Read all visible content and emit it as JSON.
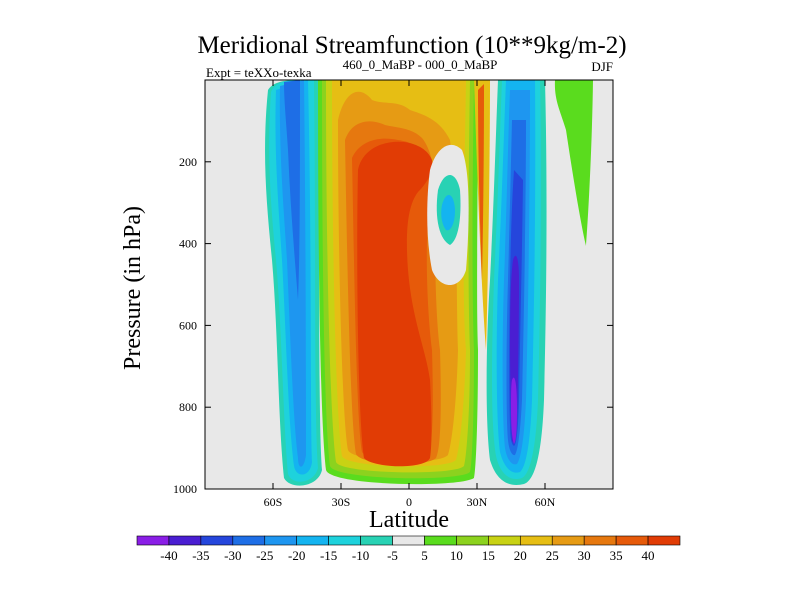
{
  "chart_data": {
    "type": "heatmap",
    "title": "Meridional Streamfunction (10**9kg/m-2)",
    "subtitle_left": "Expt = teXXo-texka",
    "subtitle_center": "460_0_MaBP - 000_0_MaBP",
    "subtitle_right": "DJF",
    "xlabel": "Latitude",
    "ylabel": "Pressure (in hPa)",
    "xlim": [
      -90,
      90
    ],
    "ylim": [
      0,
      1000
    ],
    "y_inverted": true,
    "x_ticks": [
      {
        "value": -60,
        "label": "60S"
      },
      {
        "value": -30,
        "label": "30S"
      },
      {
        "value": 0,
        "label": "0"
      },
      {
        "value": 30,
        "label": "30N"
      },
      {
        "value": 60,
        "label": "60N"
      }
    ],
    "y_ticks": [
      {
        "value": 200,
        "label": "200"
      },
      {
        "value": 400,
        "label": "400"
      },
      {
        "value": 600,
        "label": "600"
      },
      {
        "value": 800,
        "label": "800"
      },
      {
        "value": 1000,
        "label": "1000"
      }
    ],
    "levels": [
      -40,
      -35,
      -30,
      -25,
      -20,
      -15,
      -10,
      -5,
      5,
      10,
      15,
      20,
      25,
      30,
      35,
      40
    ],
    "colors": [
      "#8a1ee6",
      "#4a1ed2",
      "#2546dc",
      "#1e6ee6",
      "#1e96f0",
      "#14b4f0",
      "#1ed2dc",
      "#28d2b4",
      "#e8e8e8",
      "#5adc1e",
      "#8cd21e",
      "#c8d214",
      "#e6be14",
      "#e69b14",
      "#e6780f",
      "#e65a0a",
      "#e13c05"
    ],
    "features": [
      {
        "name": "southern-hemisphere-negative-cell",
        "lat_range": [
          -57,
          -37
        ],
        "p_range": [
          0,
          980
        ],
        "min_value": -30
      },
      {
        "name": "tropical-positive-cell",
        "lat_range": [
          -38,
          28
        ],
        "p_range": [
          0,
          985
        ],
        "max_value": 45
      },
      {
        "name": "northern-hemisphere-negative-cell",
        "lat_range": [
          32,
          53
        ],
        "p_range": [
          0,
          985
        ],
        "min_value": -40
      },
      {
        "name": "northern-upper-positive-cell",
        "lat_range": [
          65,
          80
        ],
        "p_range": [
          0,
          400
        ],
        "max_value": 10
      }
    ]
  }
}
